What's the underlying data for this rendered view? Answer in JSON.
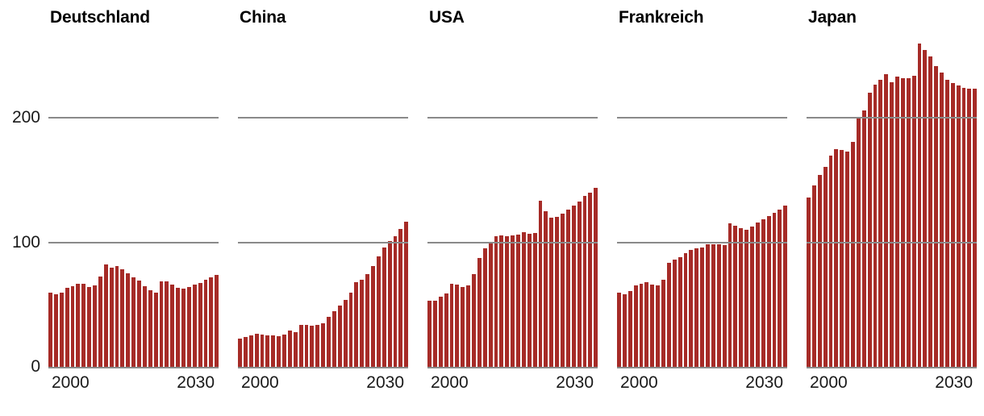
{
  "chart_data": {
    "type": "bar",
    "years": [
      2000,
      2001,
      2002,
      2003,
      2004,
      2005,
      2006,
      2007,
      2008,
      2009,
      2010,
      2011,
      2012,
      2013,
      2014,
      2015,
      2016,
      2017,
      2018,
      2019,
      2020,
      2021,
      2022,
      2023,
      2024,
      2025,
      2026,
      2027,
      2028,
      2029,
      2030
    ],
    "x_tick_labels": [
      "2000",
      "2030"
    ],
    "y_ticks": [
      {
        "value": 0,
        "label": "0"
      },
      {
        "value": 100,
        "label": "100"
      },
      {
        "value": 200,
        "label": "200"
      }
    ],
    "gridline_values": [
      100,
      200
    ],
    "ylim": [
      0,
      265
    ],
    "grid": true,
    "colors": {
      "bar": "#a62b27",
      "grid": "#8a8a8a",
      "baseline": "#8a8a8a",
      "text": "#1a1a1a"
    },
    "panels": [
      {
        "title": "Deutschland",
        "values": [
          59.3,
          58.0,
          59.7,
          63.2,
          64.7,
          67.0,
          66.4,
          64.0,
          65.5,
          72.3,
          82.0,
          79.4,
          80.7,
          78.2,
          75.3,
          71.9,
          69.0,
          64.7,
          61.3,
          59.6,
          68.4,
          68.8,
          65.8,
          63.2,
          62.6,
          64.1,
          65.8,
          67.5,
          69.7,
          71.8,
          74.0
        ]
      },
      {
        "title": "China",
        "values": [
          22.7,
          24.0,
          25.2,
          26.5,
          26.0,
          25.5,
          25.2,
          24.6,
          25.6,
          29.1,
          27.6,
          34.0,
          33.5,
          33.0,
          33.4,
          34.8,
          40.0,
          45.0,
          49.0,
          53.5,
          59.3,
          68.0,
          70.0,
          74.5,
          81.0,
          88.5,
          96.0,
          100.7,
          105.0,
          110.5,
          116.5
        ]
      },
      {
        "title": "USA",
        "values": [
          52.9,
          52.9,
          56.1,
          58.7,
          66.5,
          65.8,
          64.3,
          65.4,
          74.4,
          87.4,
          95.1,
          100.3,
          104.6,
          105.7,
          105.1,
          105.7,
          106.3,
          107.8,
          106.8,
          107.2,
          133.1,
          125.1,
          119.7,
          120.3,
          123.0,
          126.2,
          129.4,
          132.7,
          137.0,
          140.0,
          143.4
        ]
      },
      {
        "title": "Frankreich",
        "values": [
          59.8,
          58.1,
          61.1,
          65.2,
          66.5,
          68.0,
          65.8,
          65.4,
          70.1,
          83.5,
          85.8,
          88.0,
          91.0,
          93.8,
          95.3,
          96.0,
          98.1,
          98.5,
          98.1,
          97.7,
          115.4,
          113.3,
          111.5,
          110.0,
          112.8,
          115.8,
          118.6,
          121.2,
          123.6,
          126.2,
          129.4
        ]
      },
      {
        "title": "Japan",
        "values": [
          135.8,
          145.5,
          154.0,
          160.5,
          169.6,
          175.0,
          174.0,
          173.0,
          180.6,
          199.4,
          206.0,
          219.8,
          226.3,
          230.6,
          235.0,
          228.4,
          232.8,
          231.7,
          231.9,
          234.0,
          259.7,
          254.3,
          248.9,
          241.4,
          236.0,
          230.6,
          227.8,
          225.6,
          224.1,
          223.4,
          223.5
        ]
      }
    ]
  }
}
